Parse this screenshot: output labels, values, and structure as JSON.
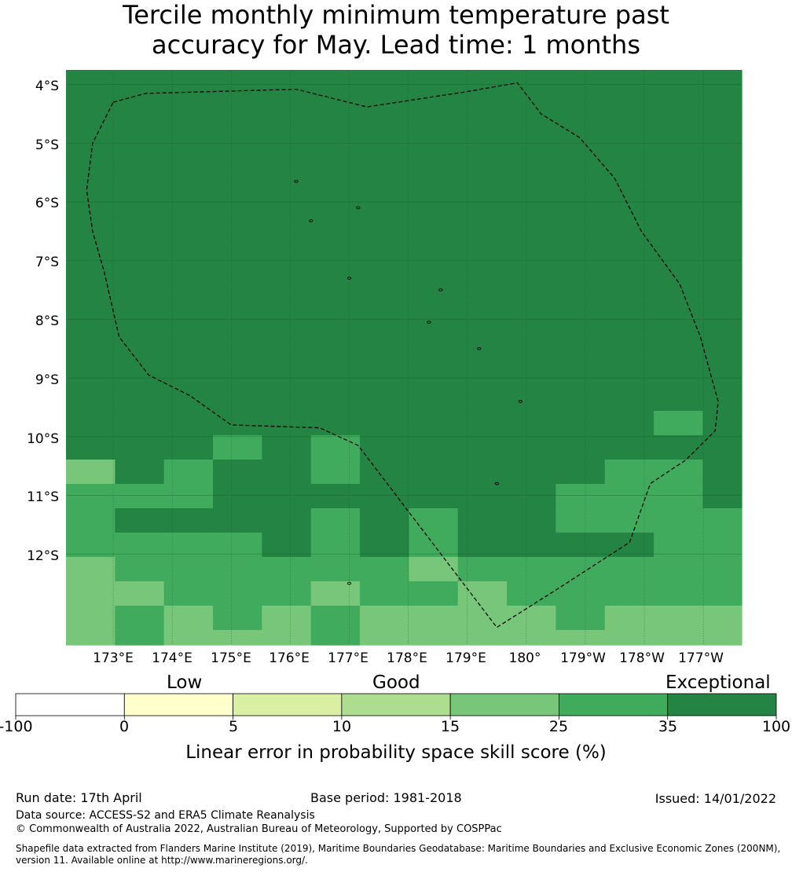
{
  "title_line1": "Tercile monthly minimum temperature past",
  "title_line2": "accuracy for May. Lead time: 1 months",
  "lat_labels": [
    "4°S",
    "5°S",
    "6°S",
    "7°S",
    "8°S",
    "9°S",
    "10°S",
    "11°S",
    "12°S"
  ],
  "lon_labels": [
    "173°E",
    "174°E",
    "175°E",
    "176°E",
    "177°E",
    "178°E",
    "179°E",
    "180°",
    "179°W",
    "178°W",
    "177°W"
  ],
  "colorbar": {
    "categories": [
      "Low",
      "Good",
      "Exceptional"
    ],
    "ticks": [
      "-100",
      "0",
      "5",
      "10",
      "15",
      "25",
      "35",
      "100"
    ],
    "colors": [
      "#ffffff",
      "#ffffcc",
      "#d9f0a3",
      "#addd8e",
      "#78c679",
      "#41ab5d",
      "#238443"
    ],
    "label": "Linear error in probability space skill score (%)"
  },
  "map": {
    "extent": {
      "lon_min": 172.2,
      "lon_max": 183.65,
      "lat_top": 3.75,
      "lat_bottom": 13.55
    },
    "grid_lon_start": 172.2,
    "grid_lat_start": 3.75,
    "cell_deg": 0.83,
    "skill_category_rows": [
      [
        6,
        6,
        6,
        6,
        6,
        6,
        6,
        6,
        6,
        6,
        6,
        6,
        6,
        6
      ],
      [
        6,
        6,
        6,
        6,
        6,
        6,
        6,
        6,
        6,
        6,
        6,
        6,
        6,
        6
      ],
      [
        6,
        6,
        6,
        6,
        6,
        6,
        6,
        6,
        6,
        6,
        6,
        6,
        6,
        6
      ],
      [
        6,
        6,
        6,
        6,
        6,
        6,
        6,
        6,
        6,
        6,
        6,
        6,
        6,
        6
      ],
      [
        6,
        6,
        6,
        6,
        6,
        6,
        6,
        6,
        6,
        6,
        6,
        6,
        6,
        6
      ],
      [
        6,
        6,
        6,
        6,
        6,
        6,
        6,
        6,
        6,
        6,
        6,
        6,
        6,
        6
      ],
      [
        6,
        6,
        6,
        6,
        6,
        6,
        6,
        6,
        6,
        6,
        6,
        6,
        6,
        6
      ],
      [
        6,
        6,
        6,
        6,
        6,
        6,
        6,
        6,
        6,
        6,
        6,
        6,
        6,
        6
      ],
      [
        6,
        6,
        6,
        6,
        6,
        6,
        6,
        6,
        6,
        6,
        6,
        6,
        6,
        6
      ],
      [
        6,
        6,
        6,
        6,
        6,
        6,
        6,
        6,
        6,
        6,
        6,
        6,
        6,
        6
      ],
      [
        6,
        6,
        6,
        6,
        6,
        6,
        6,
        6,
        6,
        6,
        6,
        6,
        6,
        6
      ],
      [
        6,
        6,
        6,
        6,
        6,
        6,
        6,
        6,
        6,
        6,
        6,
        6,
        6,
        6
      ],
      [
        6,
        6,
        6,
        6,
        6,
        6,
        6,
        6,
        6,
        6,
        6,
        6,
        6,
        6
      ],
      [
        6,
        6,
        6,
        6,
        6,
        6,
        6,
        6,
        6,
        6,
        6,
        6,
        6,
        6
      ],
      [
        6,
        6,
        6,
        6,
        6,
        6,
        6,
        6,
        6,
        6,
        6,
        6,
        5,
        6
      ],
      [
        6,
        6,
        6,
        5,
        6,
        5,
        6,
        6,
        6,
        6,
        6,
        6,
        6,
        6
      ],
      [
        4,
        6,
        5,
        6,
        6,
        5,
        6,
        6,
        6,
        6,
        6,
        5,
        5,
        6
      ],
      [
        5,
        5,
        5,
        6,
        6,
        6,
        6,
        6,
        6,
        6,
        5,
        5,
        5,
        6
      ],
      [
        5,
        6,
        6,
        6,
        6,
        5,
        6,
        5,
        6,
        6,
        5,
        5,
        5,
        5
      ],
      [
        5,
        5,
        5,
        5,
        6,
        5,
        6,
        5,
        6,
        6,
        6,
        6,
        5,
        5
      ],
      [
        4,
        5,
        5,
        5,
        5,
        5,
        5,
        4,
        5,
        5,
        5,
        5,
        5,
        5
      ],
      [
        4,
        4,
        5,
        5,
        5,
        4,
        5,
        5,
        4,
        5,
        5,
        5,
        5,
        5
      ],
      [
        4,
        5,
        4,
        5,
        4,
        5,
        4,
        4,
        4,
        4,
        5,
        4,
        4,
        4
      ],
      [
        4,
        5,
        4,
        4,
        4,
        5,
        4,
        4,
        4,
        4,
        4,
        4,
        4,
        4
      ]
    ],
    "eez_boundary_lonlat": [
      [
        173.0,
        4.3
      ],
      [
        173.55,
        4.15
      ],
      [
        176.1,
        4.08
      ],
      [
        177.3,
        4.38
      ],
      [
        179.0,
        4.12
      ],
      [
        179.85,
        3.97
      ],
      [
        180.25,
        4.5
      ],
      [
        180.9,
        4.9
      ],
      [
        181.5,
        5.6
      ],
      [
        181.95,
        6.5
      ],
      [
        182.6,
        7.4
      ],
      [
        182.95,
        8.3
      ],
      [
        183.25,
        9.4
      ],
      [
        183.2,
        9.9
      ],
      [
        182.7,
        10.4
      ],
      [
        182.1,
        10.8
      ],
      [
        181.75,
        11.8
      ],
      [
        180.6,
        12.55
      ],
      [
        179.5,
        13.25
      ],
      [
        177.15,
        10.15
      ],
      [
        176.5,
        9.85
      ],
      [
        175.0,
        9.8
      ],
      [
        174.3,
        9.3
      ],
      [
        173.6,
        8.95
      ],
      [
        173.1,
        8.3
      ],
      [
        172.85,
        7.2
      ],
      [
        172.65,
        6.5
      ],
      [
        172.55,
        5.8
      ],
      [
        172.65,
        5.0
      ],
      [
        173.0,
        4.3
      ]
    ],
    "island_marks_lonlat": [
      [
        176.1,
        5.65
      ],
      [
        177.15,
        6.1
      ],
      [
        176.35,
        6.32
      ],
      [
        177.0,
        7.3
      ],
      [
        178.55,
        7.5
      ],
      [
        178.35,
        8.05
      ],
      [
        179.2,
        8.5
      ],
      [
        179.9,
        9.4
      ],
      [
        179.5,
        10.8
      ],
      [
        177.0,
        12.5
      ]
    ]
  },
  "footer": {
    "run_date": "Run date: 17th April",
    "base_period": "Base period: 1981-2018",
    "issued": "Issued: 14/01/2022",
    "data_source": "Data source: ACCESS-S2 and ERA5 Climate Reanalysis",
    "copyright": "© Commonwealth of Australia 2022, Australian Bureau of Meteorology, Supported by COSPPac",
    "shapefile_line1": "Shapefile data extracted from Flanders Marine Institute (2019), Maritime Boundaries Geodatabase: Maritime Boundaries and Exclusive Economic Zones (200NM),",
    "shapefile_line2": "version 11. Available online at http://www.marineregions.org/."
  }
}
